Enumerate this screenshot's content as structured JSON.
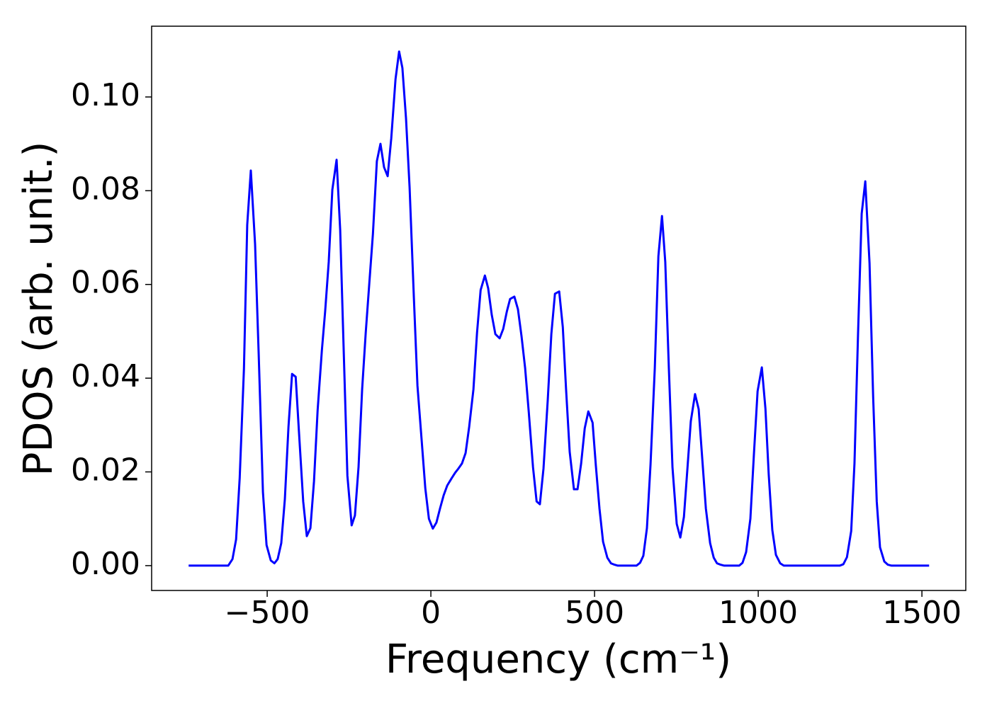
{
  "chart_data": {
    "type": "line",
    "xlabel": "Frequency (cm⁻¹)",
    "ylabel": "PDOS (arb. unit.)",
    "xlim": [
      -853,
      1634
    ],
    "ylim": [
      -0.0053,
      0.1151
    ],
    "xticks": [
      {
        "value": -500,
        "label": "−500"
      },
      0,
      500,
      1000,
      1500
    ],
    "yticks": [
      {
        "value": 0,
        "label": "0.00"
      },
      {
        "value": 0.02,
        "label": "0.02"
      },
      {
        "value": 0.04,
        "label": "0.04"
      },
      {
        "value": 0.06,
        "label": "0.06"
      },
      {
        "value": 0.08,
        "label": "0.08"
      },
      {
        "value": 0.1,
        "label": "0.10"
      }
    ],
    "color": "#0000ff",
    "x": [
      -740,
      -619,
      -606,
      -595,
      -584,
      -571,
      -561,
      -550,
      -537,
      -526,
      -513,
      -502,
      -489,
      -478,
      -468,
      -457,
      -446,
      -435,
      -424,
      -413,
      -403,
      -390,
      -379,
      -368,
      -357,
      -346,
      -333,
      -323,
      -312,
      -301,
      -288,
      -277,
      -266,
      -255,
      -242,
      -232,
      -221,
      -210,
      -199,
      -188,
      -177,
      -165,
      -154,
      -143,
      -132,
      -121,
      -108,
      -97,
      -87,
      -76,
      -65,
      -52,
      -41,
      -28,
      -17,
      -6,
      6,
      17,
      28,
      39,
      50,
      63,
      74,
      84,
      95,
      106,
      117,
      130,
      141,
      152,
      165,
      175,
      186,
      197,
      210,
      221,
      232,
      242,
      255,
      266,
      277,
      288,
      299,
      312,
      323,
      333,
      344,
      357,
      368,
      379,
      392,
      403,
      413,
      424,
      437,
      448,
      459,
      470,
      481,
      494,
      504,
      515,
      526,
      539,
      550,
      561,
      571,
      628,
      639,
      649,
      660,
      671,
      684,
      695,
      706,
      716,
      727,
      738,
      751,
      762,
      773,
      784,
      794,
      807,
      818,
      829,
      840,
      853,
      864,
      874,
      885,
      896,
      942,
      952,
      963,
      976,
      987,
      998,
      1011,
      1022,
      1032,
      1043,
      1054,
      1067,
      1078,
      1249,
      1260,
      1271,
      1284,
      1294,
      1305,
      1316,
      1327,
      1340,
      1351,
      1362,
      1372,
      1385,
      1396,
      1407,
      1522
    ],
    "values": [
      0,
      0,
      0.0014,
      0.0056,
      0.0187,
      0.042,
      0.0727,
      0.0843,
      0.0686,
      0.0452,
      0.0157,
      0.0044,
      0.0011,
      0.0005,
      0.0014,
      0.0048,
      0.0142,
      0.0296,
      0.0409,
      0.0403,
      0.0286,
      0.0137,
      0.0063,
      0.008,
      0.018,
      0.0331,
      0.0459,
      0.0542,
      0.0648,
      0.0802,
      0.0866,
      0.0716,
      0.0452,
      0.0192,
      0.0086,
      0.0107,
      0.021,
      0.0376,
      0.0497,
      0.0603,
      0.0708,
      0.0863,
      0.09,
      0.085,
      0.0831,
      0.0912,
      0.1038,
      0.1097,
      0.1062,
      0.0955,
      0.0807,
      0.0573,
      0.0384,
      0.0266,
      0.0165,
      0.01,
      0.0079,
      0.0092,
      0.0122,
      0.015,
      0.0171,
      0.0186,
      0.0198,
      0.0207,
      0.0218,
      0.024,
      0.0296,
      0.0376,
      0.0497,
      0.0588,
      0.0619,
      0.0592,
      0.0535,
      0.0494,
      0.0485,
      0.0505,
      0.0542,
      0.0569,
      0.0574,
      0.0547,
      0.0489,
      0.0421,
      0.0328,
      0.021,
      0.0137,
      0.0131,
      0.0207,
      0.0353,
      0.0494,
      0.058,
      0.0585,
      0.0509,
      0.0376,
      0.0243,
      0.0163,
      0.0163,
      0.0218,
      0.0293,
      0.0329,
      0.0305,
      0.0213,
      0.0122,
      0.0051,
      0.0017,
      0.0005,
      0.0002,
      0,
      0,
      0.0006,
      0.0021,
      0.008,
      0.0216,
      0.0421,
      0.066,
      0.0746,
      0.0648,
      0.0421,
      0.021,
      0.0089,
      0.006,
      0.0104,
      0.021,
      0.0308,
      0.0366,
      0.0334,
      0.0228,
      0.0122,
      0.0048,
      0.0017,
      0.0005,
      0.0002,
      0,
      0,
      0.0006,
      0.0029,
      0.01,
      0.024,
      0.0372,
      0.0423,
      0.0335,
      0.0195,
      0.0076,
      0.0023,
      0.0005,
      0,
      0,
      0.0003,
      0.0018,
      0.0074,
      0.0218,
      0.0497,
      0.0751,
      0.082,
      0.0645,
      0.0361,
      0.0137,
      0.0039,
      0.0009,
      0.0002,
      0,
      0
    ]
  }
}
